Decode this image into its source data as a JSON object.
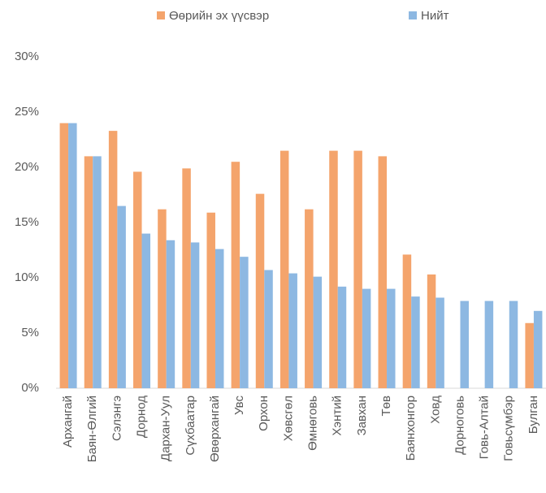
{
  "chart_data": {
    "type": "bar",
    "categories": [
      "Архангай",
      "Баян-Өлгий",
      "Сэлэнгэ",
      "Дорнод",
      "Дархан-Уул",
      "Сүхбаатар",
      "Өвөрхангай",
      "Увс",
      "Орхон",
      "Хөвсгөл",
      "Өмнөговь",
      "Хэнтий",
      "Завхан",
      "Төв",
      "Баянхонгор",
      "Ховд",
      "Дорноговь",
      "Говь-Алтай",
      "Говьсүмбэр",
      "Булган"
    ],
    "series": [
      {
        "name": "Өөрийн эх үүсвэр",
        "color": "#f4a46c",
        "values": [
          24.0,
          21.0,
          23.3,
          19.6,
          16.2,
          19.9,
          15.9,
          20.5,
          17.6,
          21.5,
          16.2,
          21.5,
          21.5,
          21.0,
          12.1,
          10.3,
          null,
          null,
          null,
          5.9
        ]
      },
      {
        "name": "Нийт",
        "color": "#8db8e2",
        "values": [
          24.0,
          21.0,
          16.5,
          14.0,
          13.4,
          13.2,
          12.6,
          11.9,
          10.7,
          10.4,
          10.1,
          9.2,
          9.0,
          9.0,
          8.3,
          8.2,
          7.9,
          7.9,
          7.9,
          7.0
        ]
      }
    ],
    "ylim": [
      0,
      30
    ],
    "yticks": [
      {
        "value": 0,
        "label": "0%"
      },
      {
        "value": 5,
        "label": "5%"
      },
      {
        "value": 10,
        "label": "10%"
      },
      {
        "value": 15,
        "label": "15%"
      },
      {
        "value": 20,
        "label": "20%"
      },
      {
        "value": 25,
        "label": "25%"
      },
      {
        "value": 30,
        "label": "30%"
      }
    ],
    "grid": false,
    "legend": "top"
  }
}
